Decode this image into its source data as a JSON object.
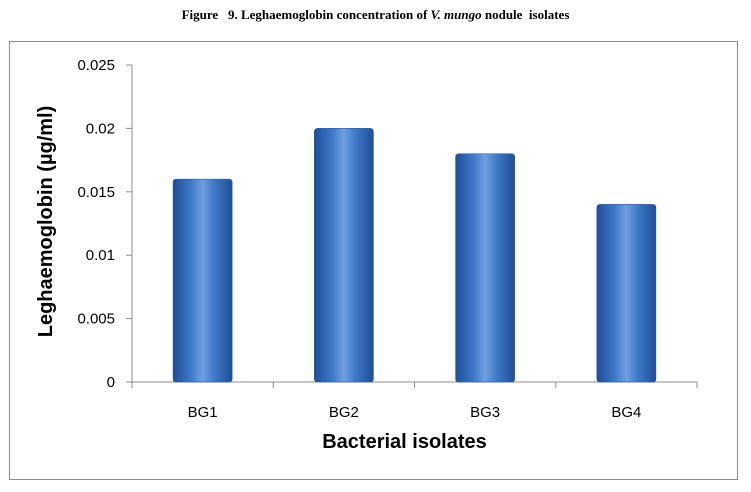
{
  "figure_caption": {
    "prefix": "Figure   9. Leghaemoglobin concentration of ",
    "italic": "V. mungo",
    "suffix": " nodule  isolates"
  },
  "chart_data": {
    "type": "bar",
    "categories": [
      "BG1",
      "BG2",
      "BG3",
      "BG4"
    ],
    "values": [
      0.016,
      0.02,
      0.018,
      0.014
    ],
    "xlabel": "Bacterial isolates",
    "ylabel": "Leghaemoglobin (µg/ml)",
    "ylim": [
      0,
      0.025
    ],
    "yticks": [
      "0",
      "0.005",
      "0.01",
      "0.015",
      "0.02",
      "0.025"
    ],
    "grid": false,
    "legend": "none",
    "bar_color": "#3f78c4"
  }
}
